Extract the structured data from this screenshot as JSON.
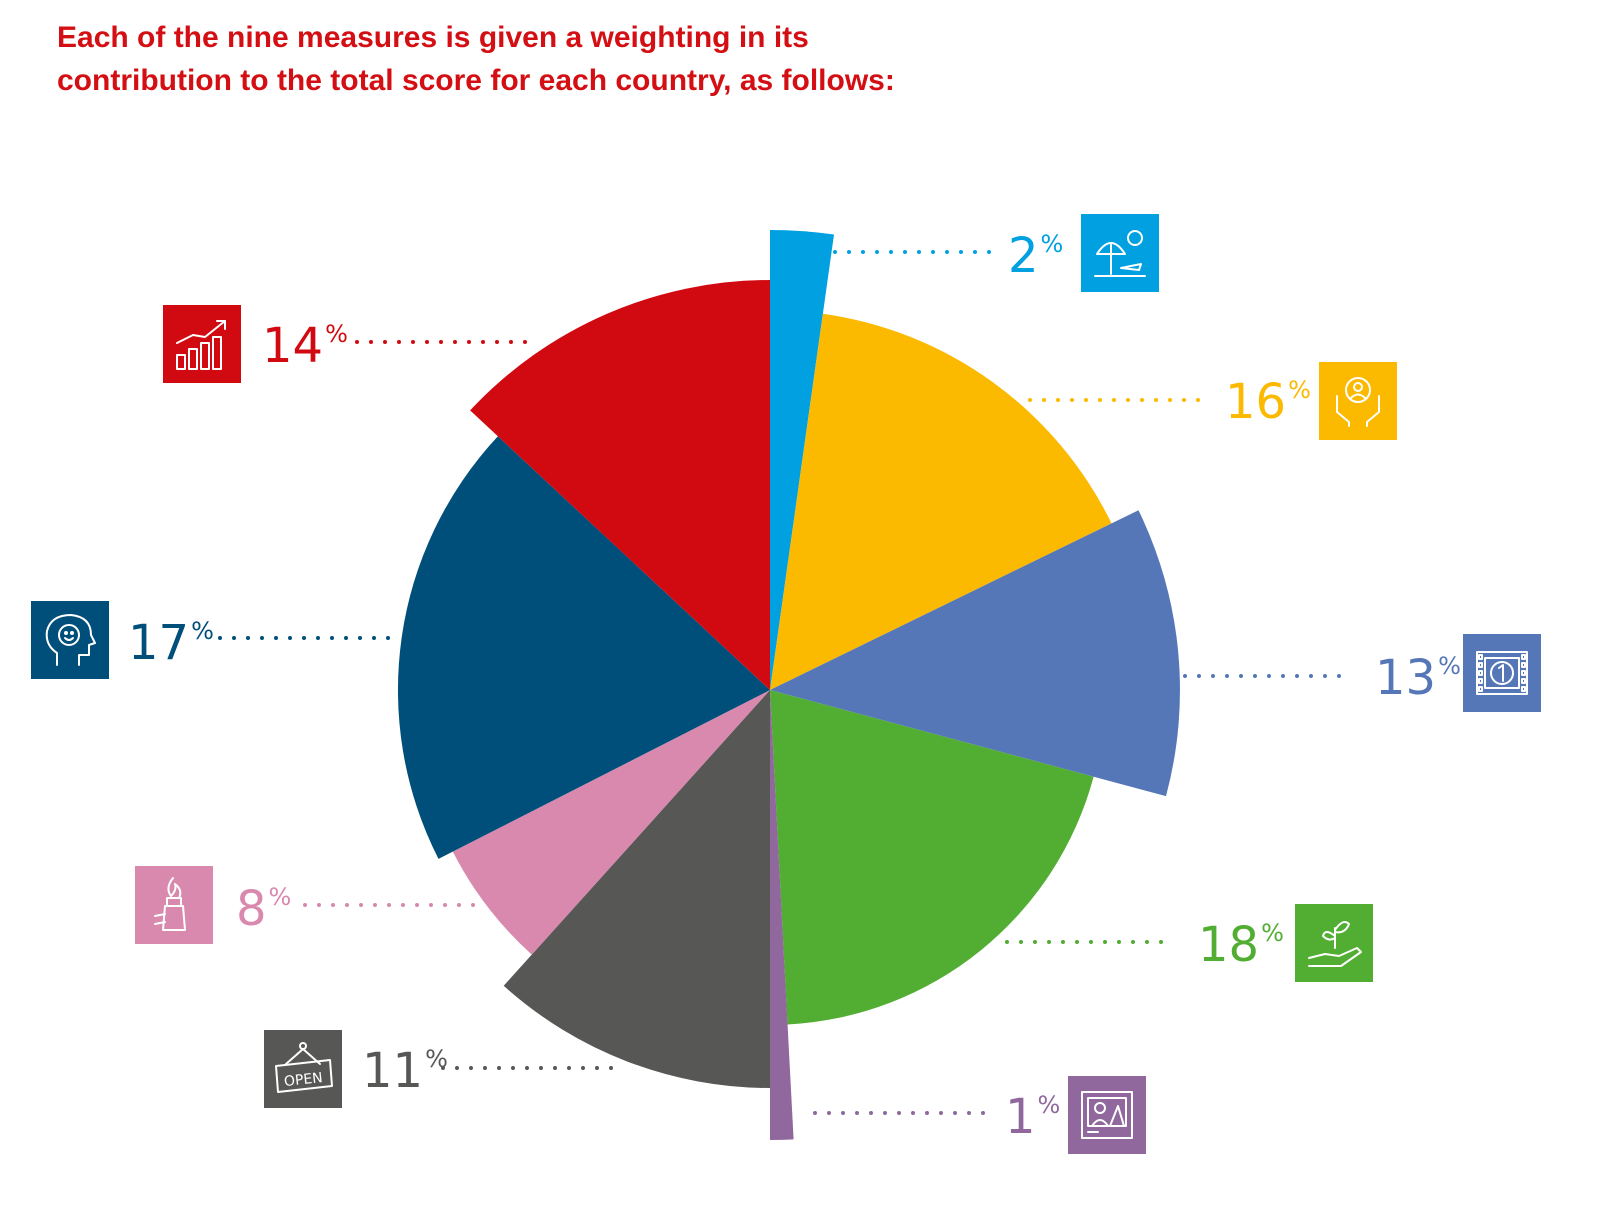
{
  "title_lines": [
    "Each of the nine measures is given a weighting in its",
    "contribution to the total score for each country, as follows:"
  ],
  "percent_sign": "%",
  "chart_data": {
    "type": "pie",
    "title": "Each of the nine measures is given a weighting in its contribution to the total score for each country, as follows:",
    "unit": "%",
    "slices": [
      {
        "value": 2,
        "label": "2",
        "color": "#00a0e1",
        "icon": "beach-umbrella-icon"
      },
      {
        "value": 16,
        "label": "16",
        "color": "#fbb900",
        "icon": "hands-person-icon"
      },
      {
        "value": 13,
        "label": "13",
        "color": "#5577b8",
        "icon": "film-strip-icon"
      },
      {
        "value": 18,
        "label": "18",
        "color": "#52ad33",
        "icon": "hand-plant-icon"
      },
      {
        "value": 1,
        "label": "1",
        "color": "#90689e",
        "icon": "image-frame-icon"
      },
      {
        "value": 11,
        "label": "11",
        "color": "#575756",
        "icon": "open-sign-icon"
      },
      {
        "value": 8,
        "label": "8",
        "color": "#d989ad",
        "icon": "torch-hand-icon"
      },
      {
        "value": 17,
        "label": "17",
        "color": "#004f7b",
        "icon": "head-smile-icon"
      },
      {
        "value": 14,
        "label": "14",
        "color": "#d10a11",
        "icon": "growth-chart-icon"
      }
    ]
  }
}
